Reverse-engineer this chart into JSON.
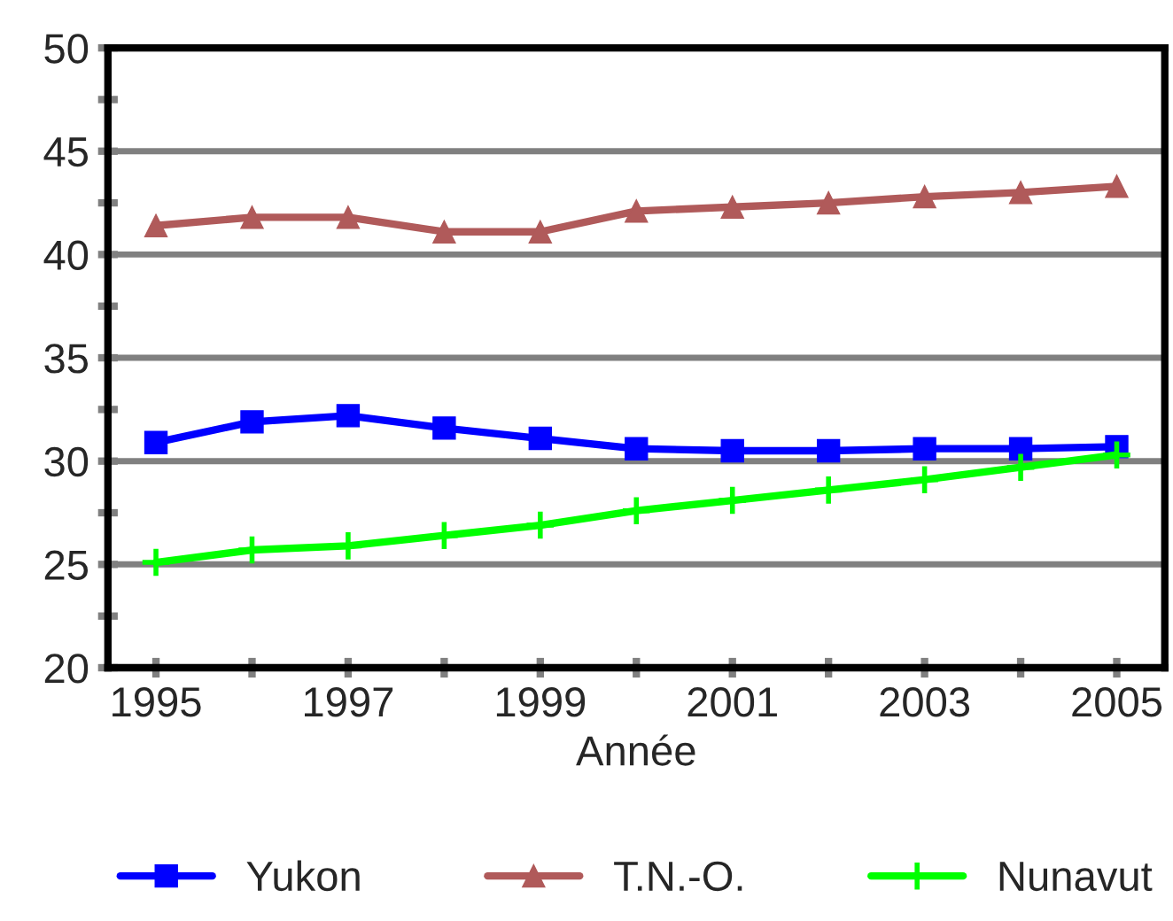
{
  "chart_data": {
    "type": "line",
    "xlabel": "Année",
    "x": [
      1995,
      1996,
      1997,
      1998,
      1999,
      2000,
      2001,
      2002,
      2003,
      2004,
      2005
    ],
    "xlim": [
      1994.5,
      2005.5
    ],
    "xticks": [
      1995,
      {
        "value": 1996,
        "label": null
      },
      1997,
      {
        "value": 1998,
        "label": null
      },
      1999,
      {
        "value": 2000,
        "label": null
      },
      2001,
      {
        "value": 2002,
        "label": null
      },
      2003,
      {
        "value": 2004,
        "label": null
      },
      2005
    ],
    "ylim": [
      20,
      50
    ],
    "yticks": [
      20,
      {
        "value": 22.5,
        "label": null
      },
      25,
      {
        "value": 27.5,
        "label": null
      },
      30,
      {
        "value": 32.5,
        "label": null
      },
      35,
      {
        "value": 37.5,
        "label": null
      },
      40,
      {
        "value": 42.5,
        "label": null
      },
      45,
      {
        "value": 47.5,
        "label": null
      },
      50
    ],
    "grid": "y",
    "legend": "bottom",
    "series": [
      {
        "name": "Yukon",
        "color": "#0000ff",
        "marker": "square",
        "values": [
          30.9,
          31.9,
          32.2,
          31.6,
          31.1,
          30.6,
          30.5,
          30.5,
          30.6,
          30.6,
          30.7
        ]
      },
      {
        "name": "T.N.-O.",
        "color": "#b05a5a",
        "marker": "triangle",
        "values": [
          41.4,
          41.8,
          41.8,
          41.1,
          41.1,
          42.1,
          42.3,
          42.5,
          42.8,
          43.0,
          43.3
        ]
      },
      {
        "name": "Nunavut",
        "color": "#00ff00",
        "marker": "cross",
        "values": [
          25.1,
          25.7,
          25.9,
          26.4,
          26.9,
          27.6,
          28.1,
          28.6,
          29.1,
          29.7,
          30.3
        ]
      }
    ]
  }
}
